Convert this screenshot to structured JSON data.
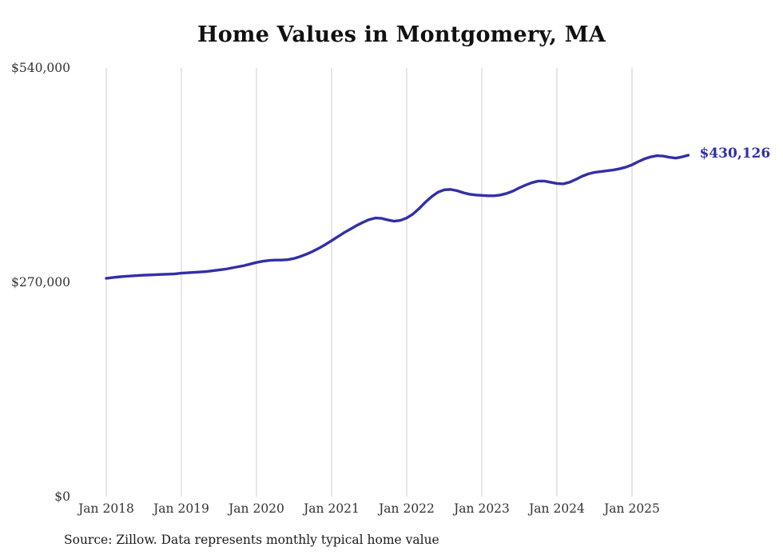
{
  "title": "Home Values in Montgomery, MA",
  "source_note": "Source: Zillow. Data represents monthly typical home value",
  "colors": {
    "line": "#312fa8",
    "grid": "#cdcdcd",
    "title": "#111111",
    "axis_labels": "#333333",
    "source": "#1a1a1a",
    "background": "#ffffff"
  },
  "chart_data": {
    "type": "line",
    "title": "Home Values in Montgomery, MA",
    "xlabel": "",
    "ylabel": "",
    "ylim": [
      0,
      540000
    ],
    "grid": "vertical-only",
    "legend": "none",
    "y_ticks": [
      {
        "label": "$540,000",
        "value": 540000
      },
      {
        "label": "$270,000",
        "value": 270000
      },
      {
        "label": "$0",
        "value": 0
      }
    ],
    "x_tick_labels": [
      "Jan 2018",
      "Jan 2019",
      "Jan 2020",
      "Jan 2021",
      "Jan 2022",
      "Jan 2023",
      "Jan 2024",
      "Jan 2025"
    ],
    "final_value": 430126,
    "final_value_label": "$430,126",
    "series": [
      {
        "name": "Typical home value",
        "start": "Jan 2018",
        "interval": "monthly",
        "values": [
          275000,
          276000,
          276800,
          277500,
          278000,
          278500,
          279000,
          279300,
          279600,
          280000,
          280300,
          280600,
          281500,
          282000,
          282500,
          283000,
          283500,
          284500,
          285500,
          286500,
          288000,
          289500,
          291000,
          293000,
          295000,
          296500,
          297500,
          298000,
          298000,
          298500,
          300000,
          302500,
          305500,
          309000,
          313000,
          317500,
          322500,
          327500,
          332500,
          337000,
          341500,
          345500,
          349000,
          351000,
          350500,
          348500,
          347000,
          348000,
          351000,
          356000,
          363000,
          371000,
          378000,
          383500,
          386500,
          387000,
          385500,
          383000,
          381000,
          380000,
          379500,
          379000,
          379000,
          380000,
          382000,
          385000,
          389000,
          392500,
          395500,
          397500,
          397500,
          396000,
          394500,
          394000,
          396000,
          399500,
          403500,
          406500,
          408500,
          409500,
          410500,
          411500,
          413000,
          415000,
          418000,
          422000,
          425500,
          428000,
          429500,
          429000,
          427500,
          426500,
          428000,
          430126
        ]
      }
    ]
  }
}
